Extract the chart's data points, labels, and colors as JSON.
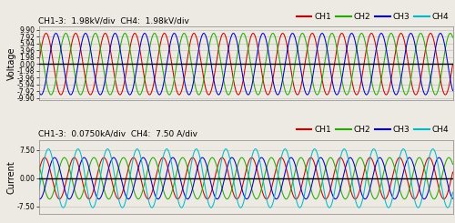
{
  "voltage_title": "CH1-3:  1.98kV/div  CH4:  1.98kV/div",
  "current_title": "CH1-3:  0.0750kA/div  CH4:  7.50 A/div",
  "voltage_ylabel": "Voltage",
  "current_ylabel": "Current",
  "voltage_yticks": [
    9.9,
    7.92,
    5.94,
    3.96,
    1.98,
    0.0,
    -1.98,
    -3.96,
    -5.94,
    -7.92,
    -9.9
  ],
  "current_yticks": [
    7.5,
    0.0,
    -7.5
  ],
  "voltage_ylim": [
    -10.5,
    10.8
  ],
  "current_ylim": [
    -9.5,
    10.0
  ],
  "num_cycles_voltage": 14,
  "num_cycles_current": 14,
  "n_points": 3000,
  "ch1_color": "#cc0000",
  "ch2_color": "#22aa00",
  "ch3_color": "#0000cc",
  "ch4_color": "#00bbcc",
  "voltage_amplitude": 8.91,
  "current_amplitude_ch123": 5.5,
  "current_amplitude_ch4": 7.8,
  "voltage_phase_ch1": 0.0,
  "voltage_phase_ch2": 2.094395,
  "voltage_phase_ch3": 4.18879,
  "current_phase_ch1": 0.3,
  "current_phase_ch2": 2.394395,
  "current_phase_ch3": 4.48879,
  "current_phase_ch4": -0.5,
  "bg_color": "#ede9e3",
  "grid_color": "#bbbbbb",
  "zero_line_color": "#000000",
  "title_fontsize": 6.5,
  "tick_fontsize": 5.5,
  "ylabel_fontsize": 7,
  "legend_fontsize": 6.5
}
